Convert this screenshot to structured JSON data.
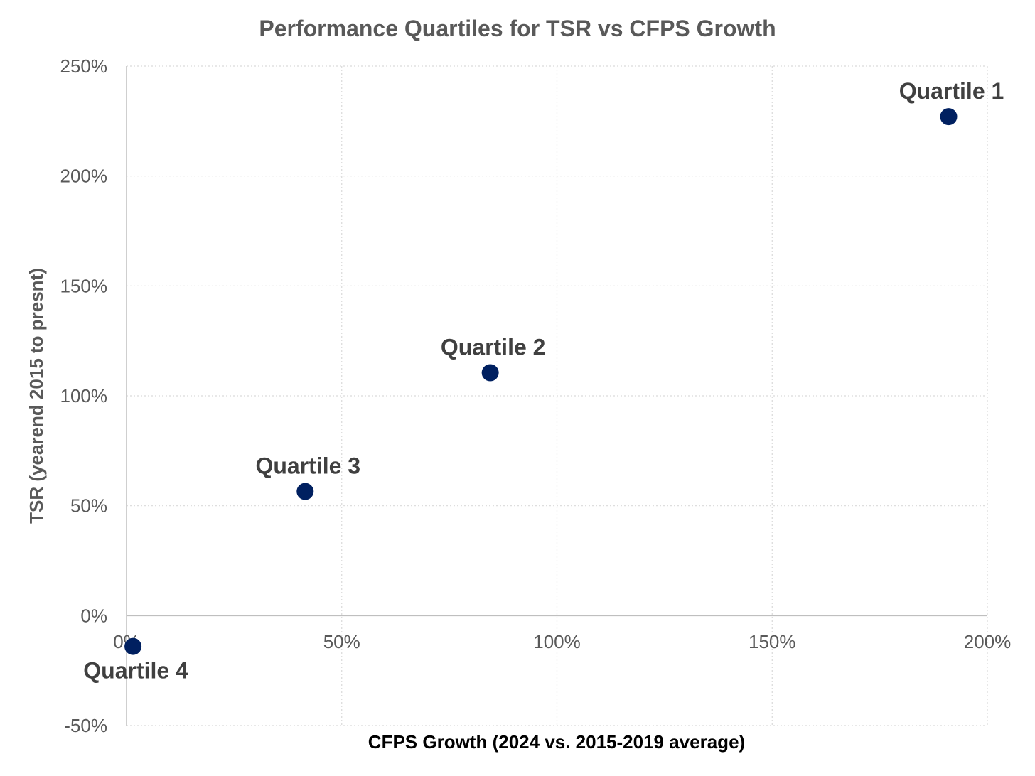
{
  "chart_data": {
    "type": "scatter",
    "title": "Performance Quartiles for TSR vs CFPS Growth",
    "xlabel": "CFPS Growth (2024 vs. 2015-2019 average)",
    "ylabel": "TSR (yearend 2015 to presnt)",
    "xlim": [
      0,
      200
    ],
    "ylim": [
      -50,
      250
    ],
    "x_ticks": [
      "0%",
      "50%",
      "100%",
      "150%",
      "200%"
    ],
    "y_ticks": [
      "-50%",
      "0%",
      "50%",
      "100%",
      "150%",
      "200%",
      "250%"
    ],
    "grid": true,
    "marker_color": "#002060",
    "points": [
      {
        "label": "Quartile 1",
        "x": 191,
        "y": 227,
        "label_position": "above"
      },
      {
        "label": "Quartile 2",
        "x": 84.5,
        "y": 110.5,
        "label_position": "above"
      },
      {
        "label": "Quartile 3",
        "x": 41.5,
        "y": 56.5,
        "label_position": "above"
      },
      {
        "label": "Quartile 4",
        "x": 1.5,
        "y": -14,
        "label_position": "below"
      }
    ]
  }
}
